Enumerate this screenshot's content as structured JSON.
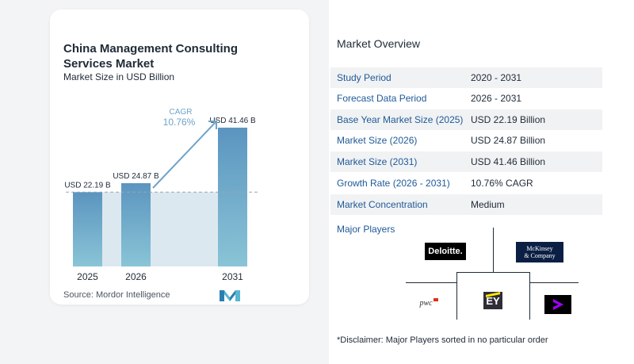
{
  "chart": {
    "title": "China Management Consulting Services Market",
    "subtitle": "Market Size in USD Billion",
    "source": "Source:  Mordor Intelligence",
    "cagr_label": "CAGR",
    "cagr_value": "10.76%"
  },
  "chart_data": {
    "type": "bar",
    "categories": [
      "2025",
      "2026",
      "2031"
    ],
    "values": [
      22.19,
      24.87,
      41.46
    ],
    "value_labels": [
      "USD 22.19 B",
      "USD 24.87 B",
      "USD 41.46 B"
    ],
    "title": "China Management Consulting Services Market",
    "subtitle": "Market Size in USD Billion",
    "xlabel": "",
    "ylabel": "",
    "ylim": [
      0,
      45
    ],
    "grid": false,
    "annotations": [
      "CAGR 10.76%"
    ]
  },
  "overview": {
    "title": "Market Overview",
    "rows": [
      {
        "label": "Study Period",
        "value": "2020 - 2031"
      },
      {
        "label": "Forecast Data Period",
        "value": "2026 - 2031"
      },
      {
        "label": "Base Year Market Size (2025)",
        "value": "USD 22.19 Billion"
      },
      {
        "label": "Market Size (2026)",
        "value": "USD 24.87 Billion"
      },
      {
        "label": "Market Size (2031)",
        "value": "USD 41.46 Billion"
      },
      {
        "label": "Growth Rate (2026 - 2031)",
        "value": "10.76% CAGR"
      },
      {
        "label": "Market Concentration",
        "value": "Medium"
      }
    ]
  },
  "players": {
    "title": "Major Players",
    "deloitte": "Deloitte.",
    "mckinsey_line1": "McKinsey",
    "mckinsey_line2": "& Company",
    "pwc": "pwc",
    "ey": "EY",
    "disclaimer": "*Disclaimer: Major Players sorted in no particular order"
  },
  "colors": {
    "bar_top": "#5b95c0",
    "bar_bottom": "#8ac4d6",
    "shade": "#dce8f0",
    "arrow": "#6fa3c9",
    "label_blue": "#1e5a96"
  }
}
